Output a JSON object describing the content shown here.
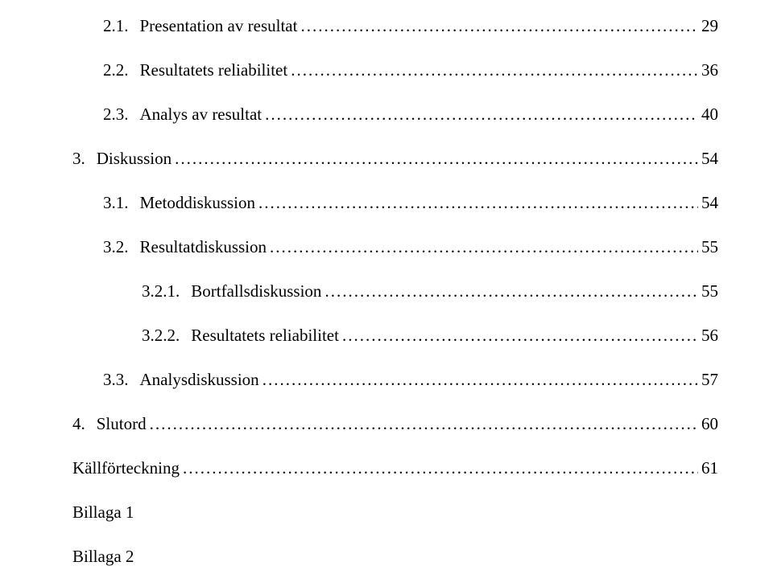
{
  "toc": [
    {
      "level": 2,
      "num": "2.1.",
      "title": "Presentation av resultat",
      "page": "29"
    },
    {
      "level": 2,
      "num": "2.2.",
      "title": "Resultatets reliabilitet",
      "page": "36"
    },
    {
      "level": 2,
      "num": "2.3.",
      "title": "Analys av resultat",
      "page": "40"
    },
    {
      "level": 1,
      "num": "3.",
      "title": "Diskussion",
      "page": "54"
    },
    {
      "level": 2,
      "num": "3.1.",
      "title": "Metoddiskussion",
      "page": "54"
    },
    {
      "level": 2,
      "num": "3.2.",
      "title": "Resultatdiskussion",
      "page": "55"
    },
    {
      "level": 3,
      "num": "3.2.1.",
      "title": "Bortfallsdiskussion",
      "page": "55"
    },
    {
      "level": 3,
      "num": "3.2.2.",
      "title": "Resultatets reliabilitet",
      "page": "56"
    },
    {
      "level": 2,
      "num": "3.3.",
      "title": "Analysdiskussion",
      "page": "57"
    },
    {
      "level": 1,
      "num": "4.",
      "title": "Slutord",
      "page": "60"
    }
  ],
  "extra": [
    {
      "title": "Källförteckning",
      "page": "61"
    }
  ],
  "appendices": [
    "Billaga 1",
    "Billaga 2"
  ]
}
